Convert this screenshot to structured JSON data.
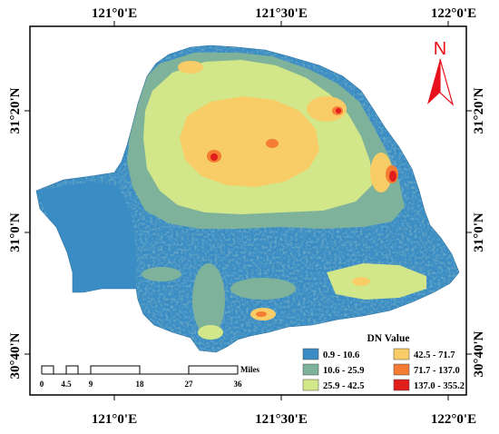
{
  "top_ticks": [
    "121°0'E",
    "121°30'E",
    "122°0'E"
  ],
  "bottom_ticks": [
    "121°0'E",
    "121°30'E",
    "122°0'E"
  ],
  "left_ticks": [
    "31°20'N",
    "31°0'N",
    "30°40'N"
  ],
  "right_ticks": [
    "31°20'N",
    "31°0'N",
    "30°40'N"
  ],
  "north_arrow": {
    "label": "N",
    "color": "#e8101a"
  },
  "legend": {
    "title": "DN Value",
    "classes": [
      {
        "label": "0.9 - 10.6",
        "color": "#3a8cc4"
      },
      {
        "label": "10.6 - 25.9",
        "color": "#7fb29a"
      },
      {
        "label": "25.9 - 42.5",
        "color": "#d2e68a"
      },
      {
        "label": "42.5 - 71.7",
        "color": "#f8cd68"
      },
      {
        "label": "71.7 - 137.0",
        "color": "#f47c34"
      },
      {
        "label": "137.0 - 355.2",
        "color": "#e21d1d"
      }
    ]
  },
  "scale_bar": {
    "labels": [
      "0",
      "4.5",
      "9",
      "18",
      "27",
      "36"
    ],
    "unit": "Miles"
  }
}
